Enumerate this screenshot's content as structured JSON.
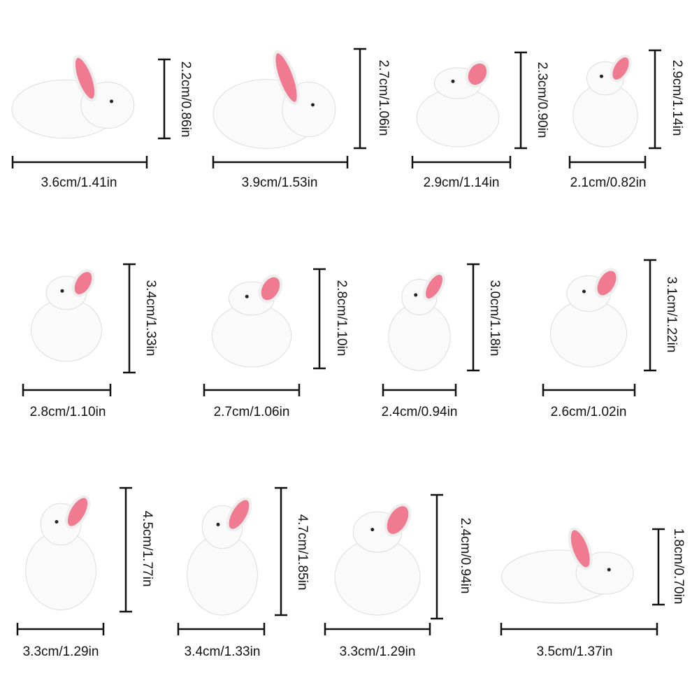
{
  "items": [
    {
      "width": "3.6cm/1.41in",
      "height": "2.2cm/0.86in"
    },
    {
      "width": "3.9cm/1.53in",
      "height": "2.7cm/1.06in"
    },
    {
      "width": "2.9cm/1.14in",
      "height": "2.3cm/0.90in"
    },
    {
      "width": "2.1cm/0.82in",
      "height": "2.9cm/1.14in"
    },
    {
      "width": "2.8cm/1.10in",
      "height": "3.4cm/1.33in"
    },
    {
      "width": "2.7cm/1.06in",
      "height": "2.8cm/1.10in"
    },
    {
      "width": "2.4cm/0.94in",
      "height": "3.0cm/1.18in"
    },
    {
      "width": "2.6cm/1.02in",
      "height": "3.1cm/1.22in"
    },
    {
      "width": "3.3cm/1.29in",
      "height": "4.5cm/1.77in"
    },
    {
      "width": "3.4cm/1.33in",
      "height": "4.7cm/1.85in"
    },
    {
      "width": "3.3cm/1.29in",
      "height": "2.4cm/0.94in"
    },
    {
      "width": "3.5cm/1.37in",
      "height": "1.8cm/0.70in"
    }
  ]
}
